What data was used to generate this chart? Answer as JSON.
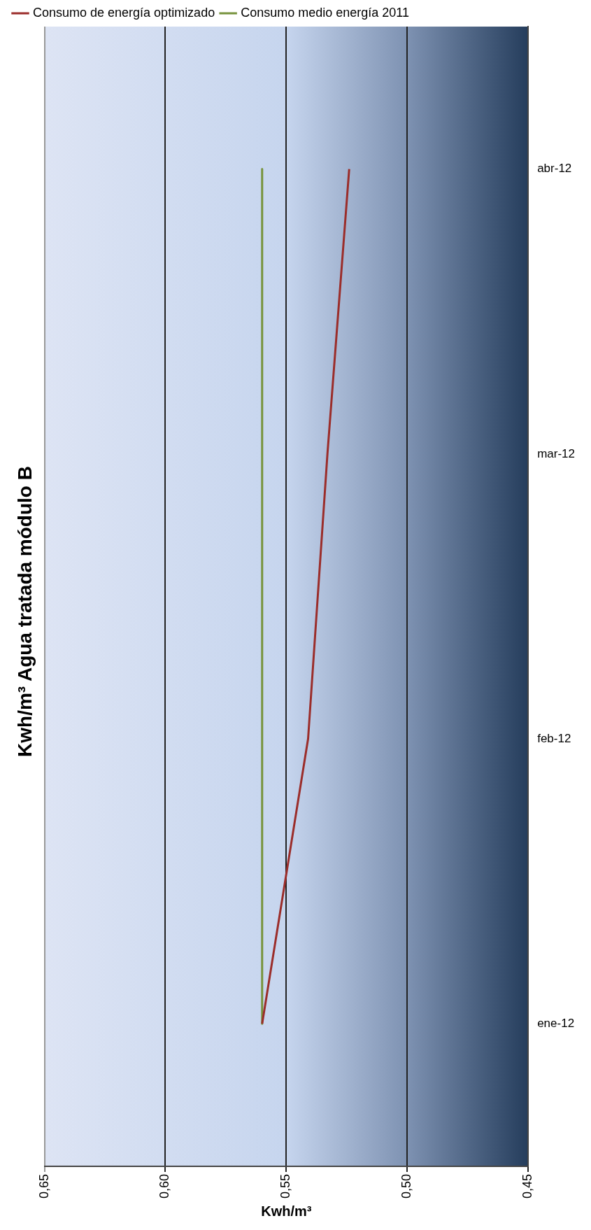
{
  "chart_data": {
    "type": "line",
    "orientation": "horizontal",
    "title": "Kwh/m³ Agua tratada módulo B",
    "xlabel": "Kwh/m³",
    "categories": [
      "abr-12",
      "mar-12",
      "feb-12",
      "ene-12"
    ],
    "series": [
      {
        "name": "Consumo de energía optimizado",
        "color": "#9b2d2a",
        "values": [
          0.524,
          0.533,
          0.541,
          0.56
        ]
      },
      {
        "name": "Consumo medio energía 2011",
        "color": "#77933c",
        "values": [
          0.56,
          0.56,
          0.56,
          0.56
        ]
      }
    ],
    "xlim": [
      0.65,
      0.45
    ],
    "xticks": [
      {
        "value": 0.45,
        "label": "0,45"
      },
      {
        "value": 0.5,
        "label": "0,50"
      },
      {
        "value": 0.55,
        "label": "0,55"
      },
      {
        "value": 0.6,
        "label": "0,60"
      },
      {
        "value": 0.65,
        "label": "0,65"
      }
    ],
    "grid": "x",
    "legend": "top left",
    "marker": "none",
    "line_style": "solid"
  }
}
